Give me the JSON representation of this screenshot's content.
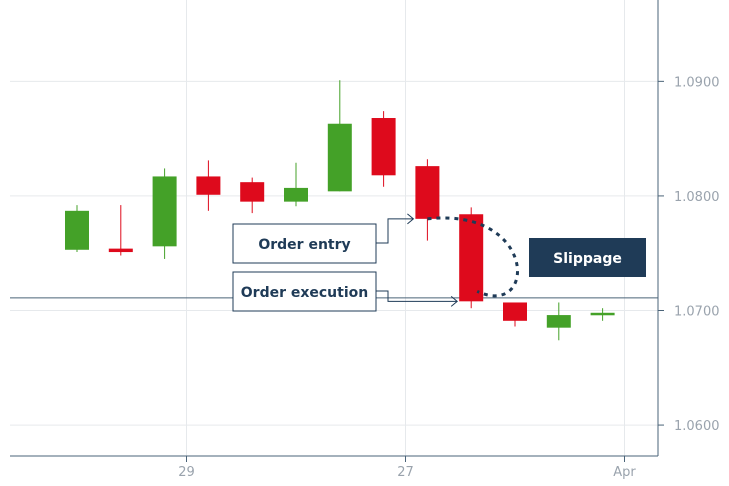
{
  "chart_data": {
    "type": "candlestick",
    "title": "",
    "xlabel": "",
    "ylabel": "",
    "ylim": [
      1.0573,
      1.0971
    ],
    "y_ticks": [
      "1.0900",
      "1.0800",
      "1.0700",
      "1.0600"
    ],
    "x_ticks": [
      {
        "label": "29",
        "at": 2.5
      },
      {
        "label": "27",
        "at": 7.5
      },
      {
        "label": "Apr",
        "at": 12.5
      }
    ],
    "grid": true,
    "reference_line": 1.0711,
    "candles": [
      {
        "i": 0,
        "open": 1.0753,
        "close": 1.0787,
        "high": 1.0792,
        "low": 1.0751
      },
      {
        "i": 1,
        "open": 1.0754,
        "close": 1.0751,
        "high": 1.0792,
        "low": 1.0748
      },
      {
        "i": 2,
        "open": 1.0756,
        "close": 1.0817,
        "high": 1.0824,
        "low": 1.0745
      },
      {
        "i": 3,
        "open": 1.0817,
        "close": 1.0801,
        "high": 1.0831,
        "low": 1.0787
      },
      {
        "i": 4,
        "open": 1.0812,
        "close": 1.0795,
        "high": 1.0816,
        "low": 1.0785
      },
      {
        "i": 5,
        "open": 1.0795,
        "close": 1.0807,
        "high": 1.0829,
        "low": 1.0791
      },
      {
        "i": 6,
        "open": 1.0804,
        "close": 1.0863,
        "high": 1.0901,
        "low": 1.0804
      },
      {
        "i": 7,
        "open": 1.0868,
        "close": 1.0818,
        "high": 1.0874,
        "low": 1.0808
      },
      {
        "i": 8,
        "open": 1.0826,
        "close": 1.078,
        "high": 1.0832,
        "low": 1.0761
      },
      {
        "i": 9,
        "open": 1.0784,
        "close": 1.0708,
        "high": 1.079,
        "low": 1.0702
      },
      {
        "i": 10,
        "open": 1.0707,
        "close": 1.0691,
        "high": 1.0707,
        "low": 1.0686
      },
      {
        "i": 11,
        "open": 1.0685,
        "close": 1.0696,
        "high": 1.0707,
        "low": 1.0674
      },
      {
        "i": 12,
        "open": 1.0697,
        "close": 1.0698,
        "high": 1.0702,
        "low": 1.0691
      }
    ],
    "annotations": [
      {
        "text": "Order entry",
        "target_candle": 8,
        "price": 1.078
      },
      {
        "text": "Order execution",
        "target_candle": 9,
        "price": 1.0708
      },
      {
        "text": "Slippage",
        "style": "filled"
      }
    ]
  },
  "colors": {
    "up": "#44a128",
    "down": "#de0a1c",
    "grid": "#e6e9ec",
    "axis": "#9aa3ad",
    "reference": "#4a6378",
    "annotation": "#1f3b57",
    "slippage_fill": "#1f3b57"
  }
}
